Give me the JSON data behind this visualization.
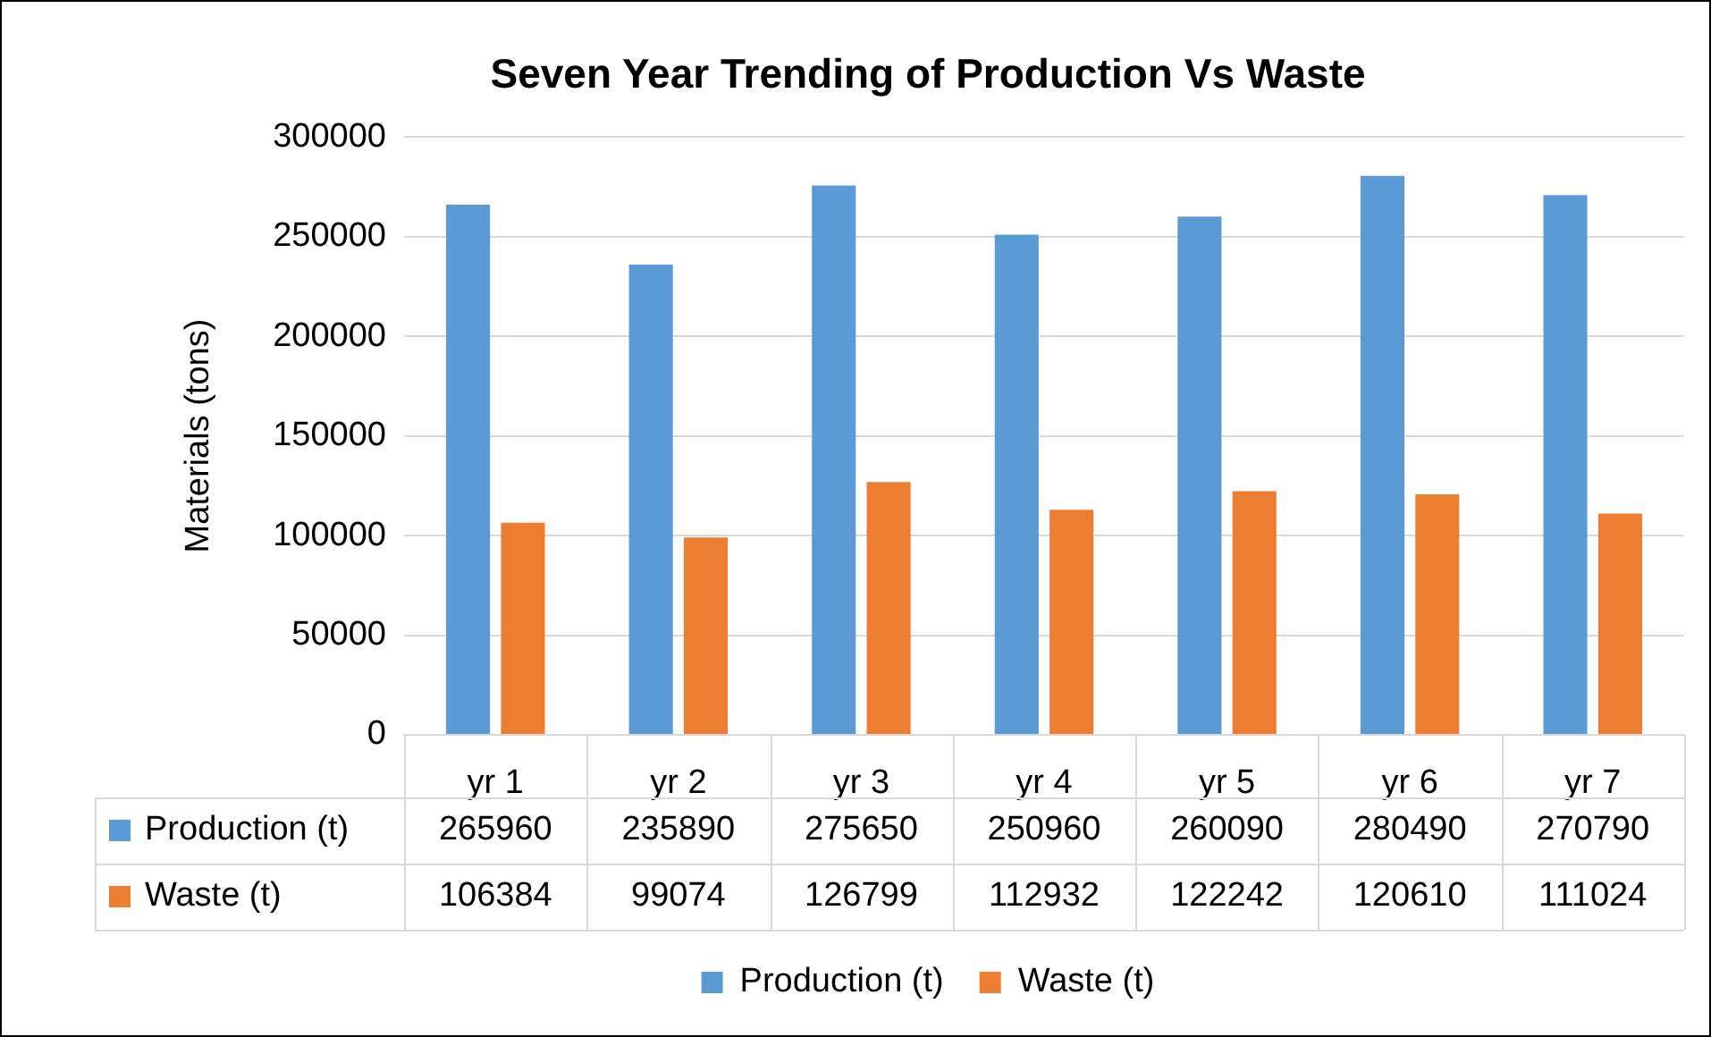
{
  "chart_data": {
    "type": "bar",
    "title": "Seven Year Trending of Production Vs Waste",
    "ylabel": "Materials (tons)",
    "categories": [
      "yr 1",
      "yr 2",
      "yr 3",
      "yr 4",
      "yr 5",
      "yr 6",
      "yr 7"
    ],
    "series": [
      {
        "name": "Production (t)",
        "color": "#5b9bd5",
        "values": [
          265960,
          235890,
          275650,
          250960,
          260090,
          280490,
          270790
        ]
      },
      {
        "name": "Waste (t)",
        "color": "#ed7d31",
        "values": [
          106384,
          99074,
          126799,
          112932,
          122242,
          120610,
          111024
        ]
      }
    ],
    "ylim": [
      0,
      300000
    ],
    "yticks": [
      0,
      50000,
      100000,
      150000,
      200000,
      250000,
      300000
    ],
    "grid": "y",
    "legend": "bottom",
    "data_labels": true
  }
}
